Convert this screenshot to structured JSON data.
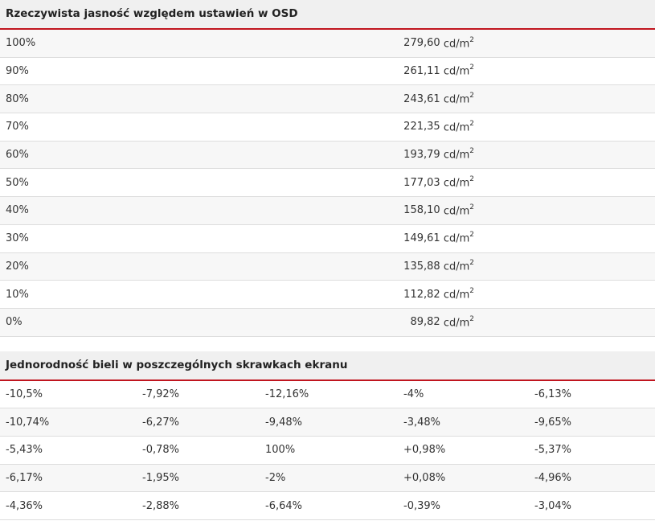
{
  "brightness_table": {
    "title": "Rzeczywista jasność względem ustawień w OSD",
    "unit": "cd/m",
    "unit_sup": "2",
    "rows": [
      {
        "setting": "100%",
        "value": "279,60"
      },
      {
        "setting": "90%",
        "value": "261,11"
      },
      {
        "setting": "80%",
        "value": "243,61"
      },
      {
        "setting": "70%",
        "value": "221,35"
      },
      {
        "setting": "60%",
        "value": "193,79"
      },
      {
        "setting": "50%",
        "value": "177,03"
      },
      {
        "setting": "40%",
        "value": "158,10"
      },
      {
        "setting": "30%",
        "value": "149,61"
      },
      {
        "setting": "20%",
        "value": "135,88"
      },
      {
        "setting": "10%",
        "value": "112,82"
      },
      {
        "setting": "0%",
        "value": "89,82"
      }
    ]
  },
  "uniformity_table": {
    "title": "Jednorodność bieli w poszczególnych skrawkach ekranu",
    "rows": [
      [
        "-10,5%",
        "-7,92%",
        "-12,16%",
        "-4%",
        "-6,13%"
      ],
      [
        "-10,74%",
        "-6,27%",
        "-9,48%",
        "-3,48%",
        "-9,65%"
      ],
      [
        "-5,43%",
        "-0,78%",
        "100%",
        "+0,98%",
        "-5,37%"
      ],
      [
        "-6,17%",
        "-1,95%",
        "-2%",
        "+0,08%",
        "-4,96%"
      ],
      [
        "-4,36%",
        "-2,88%",
        "-6,64%",
        "-0,39%",
        "-3,04%"
      ]
    ]
  },
  "colors": {
    "header_bg": "#f0f0f0",
    "accent_line": "#c0151f",
    "row_alt_bg": "#f7f7f7",
    "divider": "#dddddd"
  }
}
